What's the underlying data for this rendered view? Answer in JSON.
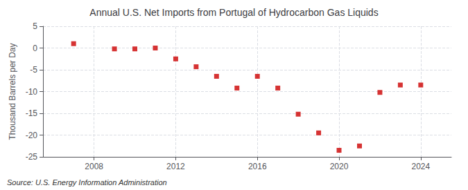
{
  "chart_data": {
    "type": "scatter",
    "title": "Annual U.S. Net Imports from Portugal of Hydrocarbon Gas Liquids",
    "ylabel": "Thousand Barrels per Day",
    "annotation": "Source: U.S. Energy Information Administration",
    "x": [
      2007,
      2009,
      2010,
      2011,
      2012,
      2013,
      2014,
      2015,
      2016,
      2017,
      2018,
      2019,
      2020,
      2021,
      2022,
      2023,
      2024
    ],
    "values": [
      1.0,
      -0.2,
      -0.2,
      0.0,
      -2.5,
      -4.3,
      -6.5,
      -9.2,
      -6.5,
      -9.2,
      -15.2,
      -19.5,
      -23.5,
      -22.5,
      -10.2,
      -8.5,
      -8.5
    ],
    "color": "#CC0000",
    "marker": "square",
    "xlim": [
      2005.5,
      2025.5
    ],
    "xticks": [
      2008,
      2012,
      2016,
      2020,
      2024
    ],
    "ylim": [
      -25,
      5
    ],
    "yticks": [
      5,
      0,
      -5,
      -10,
      -15,
      -20,
      -25
    ],
    "grid": true
  }
}
